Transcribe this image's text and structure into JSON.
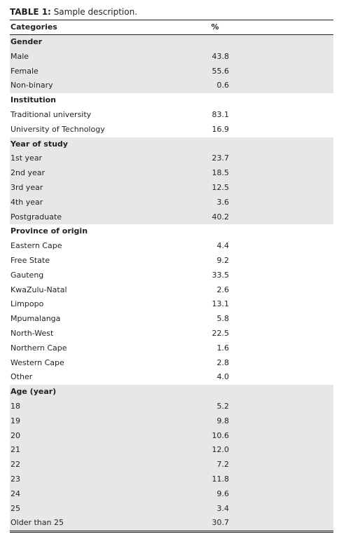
{
  "caption": {
    "label": "TABLE 1:",
    "text": "Sample description."
  },
  "header": [
    "Categories",
    "%"
  ],
  "sections": [
    {
      "name": "Gender",
      "rows": [
        [
          "Male",
          "43.8"
        ],
        [
          "Female",
          "55.6"
        ],
        [
          "Non-binary",
          "0.6"
        ]
      ]
    },
    {
      "name": "Institution",
      "rows": [
        [
          "Traditional university",
          "83.1"
        ],
        [
          "University of Technology",
          "16.9"
        ]
      ]
    },
    {
      "name": "Year of study",
      "rows": [
        [
          "1st year",
          "23.7"
        ],
        [
          "2nd year",
          "18.5"
        ],
        [
          "3rd year",
          "12.5"
        ],
        [
          "4th year",
          "3.6"
        ],
        [
          "Postgraduate",
          "40.2"
        ]
      ]
    },
    {
      "name": "Province of origin",
      "rows": [
        [
          "Eastern Cape",
          "4.4"
        ],
        [
          "Free State",
          "9.2"
        ],
        [
          "Gauteng",
          "33.5"
        ],
        [
          "KwaZulu-Natal",
          "2.6"
        ],
        [
          "Limpopo",
          "13.1"
        ],
        [
          "Mpumalanga",
          "5.8"
        ],
        [
          "North-West",
          "22.5"
        ],
        [
          "Northern Cape",
          "1.6"
        ],
        [
          "Western Cape",
          "2.8"
        ],
        [
          "Other",
          "4.0"
        ]
      ]
    },
    {
      "name": "Age (year)",
      "rows": [
        [
          "18",
          "5.2"
        ],
        [
          "19",
          "9.8"
        ],
        [
          "20",
          "10.6"
        ],
        [
          "21",
          "12.0"
        ],
        [
          "22",
          "7.2"
        ],
        [
          "23",
          "11.8"
        ],
        [
          "24",
          "9.6"
        ],
        [
          "25",
          "3.4"
        ],
        [
          "Older than 25",
          "30.7"
        ]
      ]
    }
  ]
}
